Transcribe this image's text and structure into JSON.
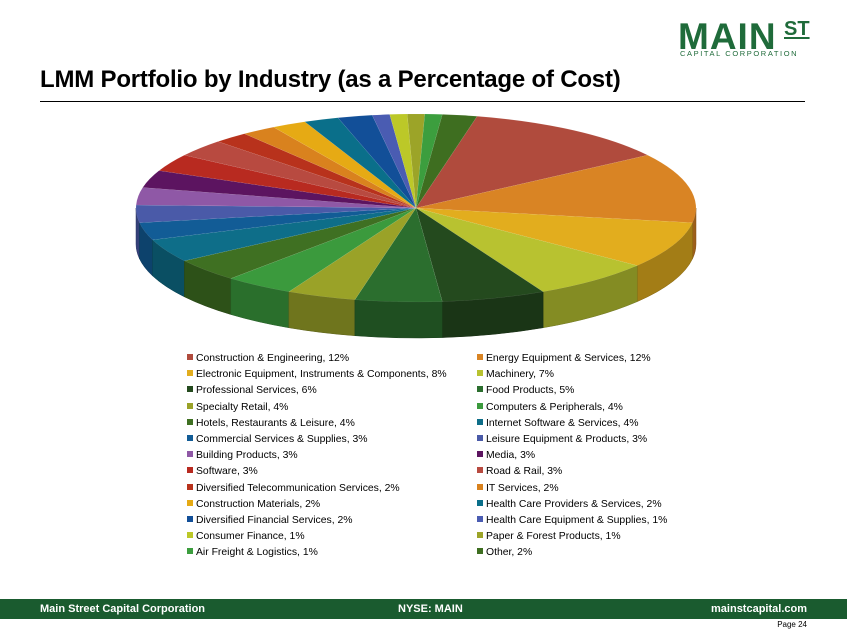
{
  "logo": {
    "main": "MAIN",
    "st": "ST",
    "sub": "CAPITAL CORPORATION"
  },
  "title": "LMM Portfolio by Industry (as a Percentage of Cost)",
  "chart_data": {
    "type": "pie",
    "title": "",
    "slices": [
      {
        "label": "Construction & Engineering, 12%",
        "value": 12,
        "color": "#b04b3d"
      },
      {
        "label": "Energy Equipment & Services, 12%",
        "value": 12,
        "color": "#d98424"
      },
      {
        "label": "Electronic Equipment, Instruments & Components, 8%",
        "value": 8,
        "color": "#e2ad1e"
      },
      {
        "label": "Machinery, 7%",
        "value": 7,
        "color": "#b8c230"
      },
      {
        "label": "Professional Services, 6%",
        "value": 6,
        "color": "#244a1e"
      },
      {
        "label": "Food Products, 5%",
        "value": 5,
        "color": "#2b6e2e"
      },
      {
        "label": "Specialty Retail, 4%",
        "value": 4,
        "color": "#9aa228"
      },
      {
        "label": "Computers & Peripherals, 4%",
        "value": 4,
        "color": "#3b9a3d"
      },
      {
        "label": "Hotels, Restaurants & Leisure, 4%",
        "value": 4,
        "color": "#3f7022"
      },
      {
        "label": "Internet Software & Services, 4%",
        "value": 4,
        "color": "#0e6e89"
      },
      {
        "label": "Commercial Services & Supplies, 3%",
        "value": 3,
        "color": "#125c96"
      },
      {
        "label": "Leisure Equipment & Products, 3%",
        "value": 3,
        "color": "#4a5aa8"
      },
      {
        "label": "Building Products, 3%",
        "value": 3,
        "color": "#8f58a6"
      },
      {
        "label": "Media, 3%",
        "value": 3,
        "color": "#5c1460"
      },
      {
        "label": "Software, 3%",
        "value": 3,
        "color": "#b82a20"
      },
      {
        "label": "Road & Rail, 3%",
        "value": 3,
        "color": "#b84a40"
      },
      {
        "label": "Diversified Telecommunication Services, 2%",
        "value": 2,
        "color": "#b8321c"
      },
      {
        "label": "IT Services, 2%",
        "value": 2,
        "color": "#d9821e"
      },
      {
        "label": "Construction Materials, 2%",
        "value": 2,
        "color": "#e6aa14"
      },
      {
        "label": "Health Care Providers & Services, 2%",
        "value": 2,
        "color": "#0a6f8a"
      },
      {
        "label": "Diversified Financial Services, 2%",
        "value": 2,
        "color": "#124f98"
      },
      {
        "label": "Health Care Equipment & Supplies, 1%",
        "value": 1,
        "color": "#4a5cb2"
      },
      {
        "label": "Consumer Finance, 1%",
        "value": 1,
        "color": "#bcc828"
      },
      {
        "label": "Paper & Forest Products, 1%",
        "value": 1,
        "color": "#9ca428"
      },
      {
        "label": "Air Freight & Logistics, 1%",
        "value": 1,
        "color": "#3c9e3e"
      },
      {
        "label": "Other, 2%",
        "value": 2,
        "color": "#3e6e20"
      }
    ],
    "legend_placement": "bottom, two columns"
  },
  "footer": {
    "left": "Main Street Capital Corporation",
    "center": "NYSE: MAIN",
    "right": "mainstcapital.com"
  },
  "page_label": "Page  24"
}
